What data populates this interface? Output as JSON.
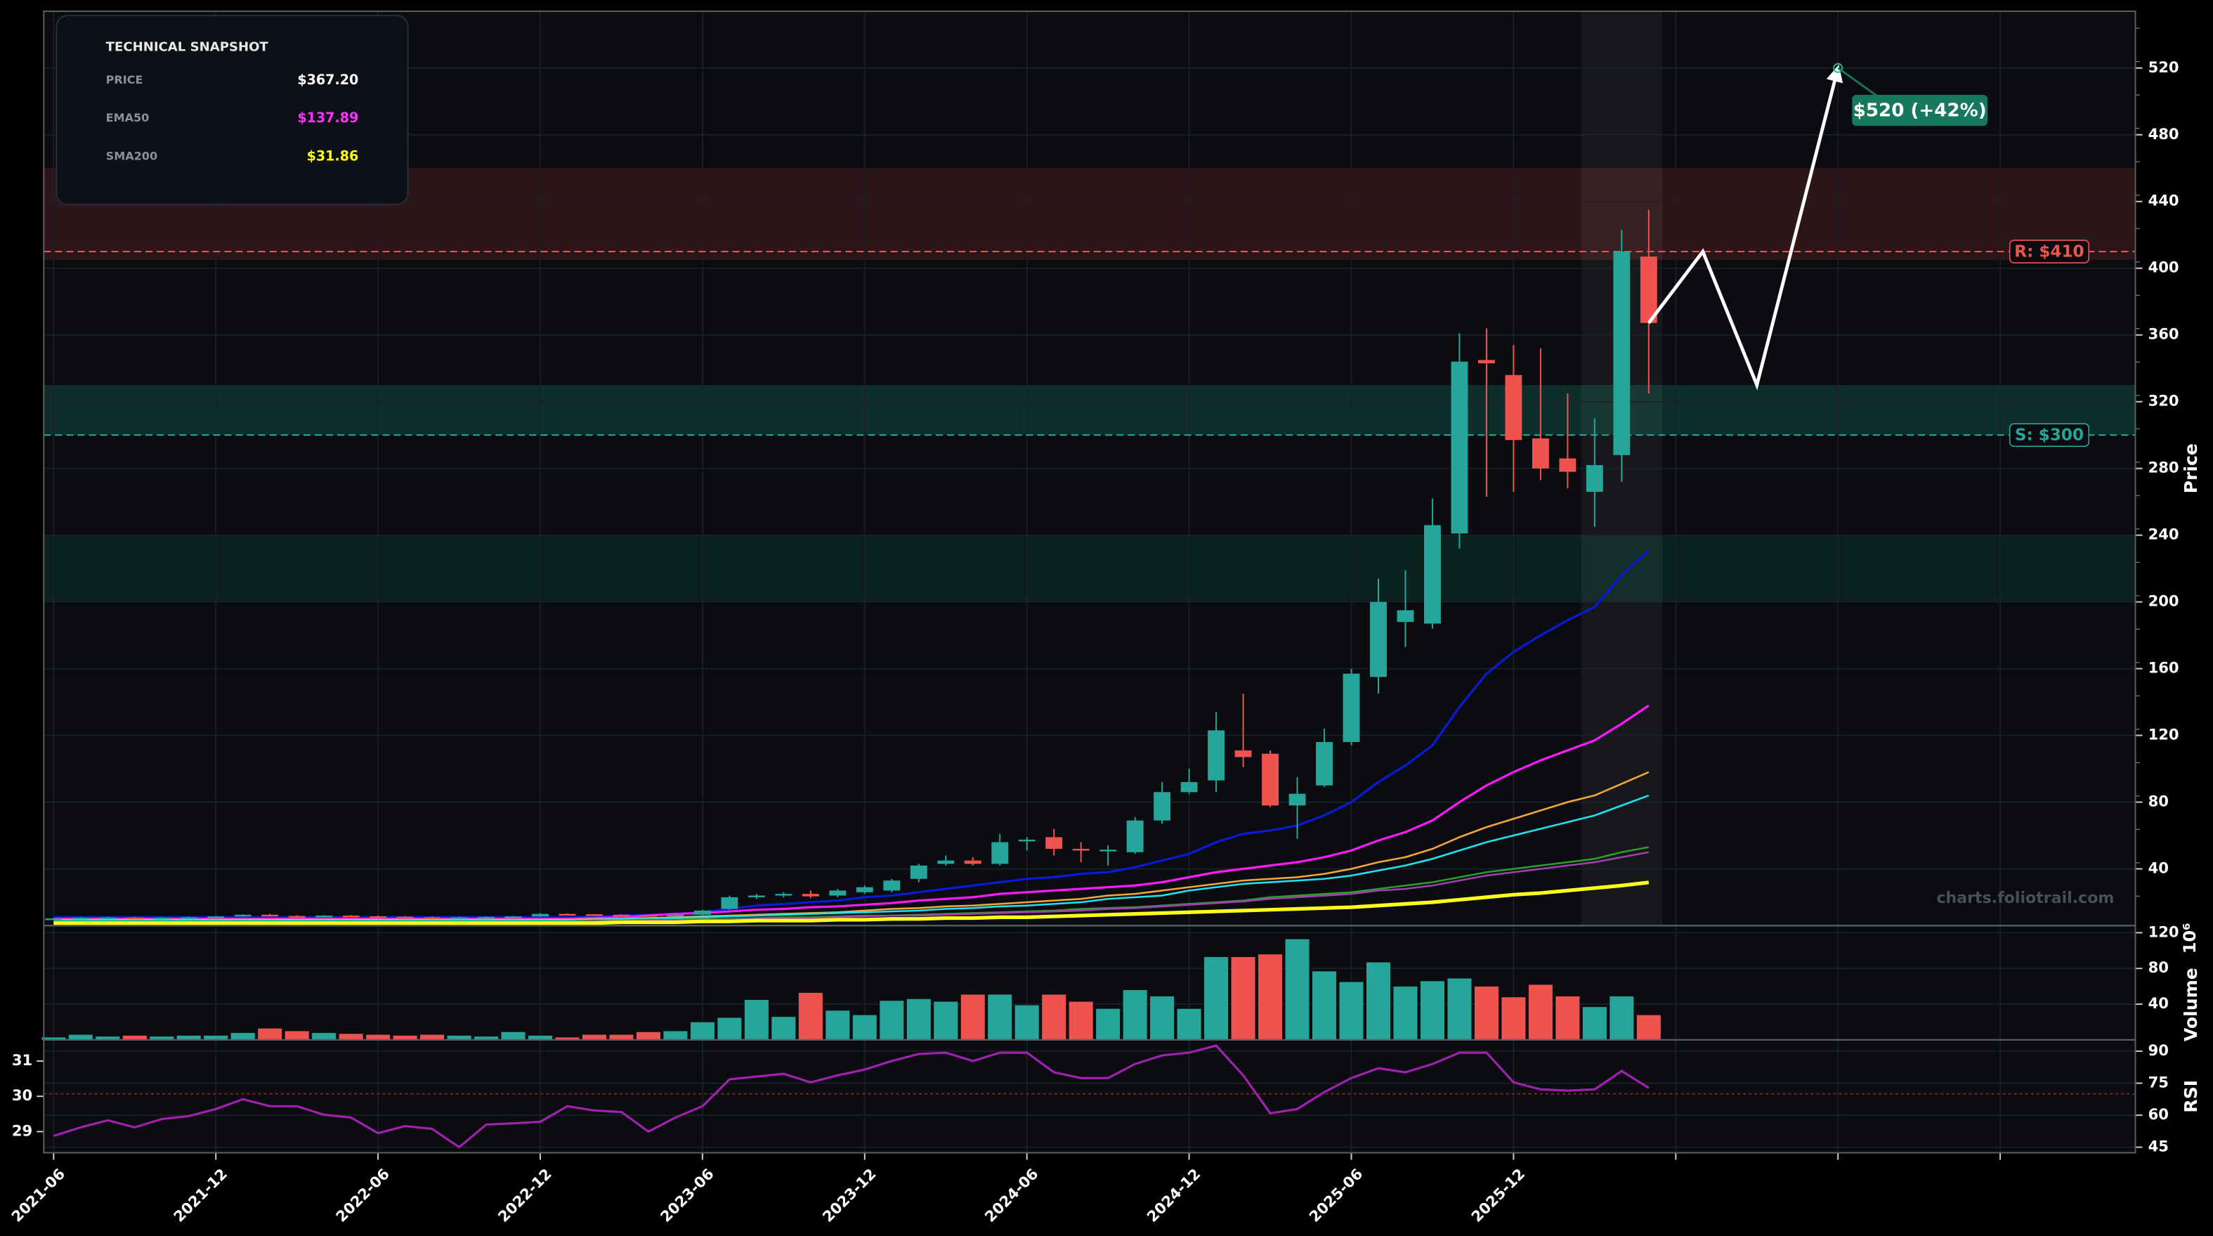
{
  "chart_data": [
    {
      "type": "candlestick",
      "x": [
        "2021-06",
        "2021-07",
        "2021-08",
        "2021-09",
        "2021-10",
        "2021-11",
        "2021-12",
        "2022-01",
        "2022-02",
        "2022-03",
        "2022-04",
        "2022-05",
        "2022-06",
        "2022-07",
        "2022-08",
        "2022-09",
        "2022-10",
        "2022-11",
        "2022-12",
        "2023-01",
        "2023-02",
        "2023-03",
        "2023-04",
        "2023-05",
        "2023-06",
        "2023-07",
        "2023-08",
        "2023-09",
        "2023-10",
        "2023-11",
        "2023-12",
        "2024-01",
        "2024-02",
        "2024-03",
        "2024-04",
        "2024-05",
        "2024-06",
        "2024-07",
        "2024-08",
        "2024-09",
        "2024-10",
        "2024-11",
        "2024-12",
        "2025-01",
        "2025-02",
        "2025-03",
        "2025-04",
        "2025-05",
        "2025-06",
        "2025-07",
        "2025-08",
        "2025-09",
        "2025-10",
        "2025-11",
        "2025-12",
        "2026-01",
        "2026-02",
        "2026-03",
        "2026-04",
        "2026-05"
      ],
      "open": [
        10,
        10.3,
        10.8,
        10.9,
        10.5,
        10.8,
        11,
        11.5,
        12.5,
        11.8,
        11.5,
        12,
        11.6,
        11.3,
        11,
        10.8,
        11,
        11.2,
        11.5,
        13,
        12.8,
        12.5,
        12.3,
        12,
        12.5,
        16,
        23,
        24,
        25,
        24,
        26,
        27,
        34,
        43,
        45,
        43,
        57,
        59,
        52,
        51,
        50,
        69,
        86,
        93,
        111,
        109,
        78,
        90,
        116,
        155,
        188,
        187,
        241,
        345,
        336,
        298,
        286,
        266,
        288,
        407
      ],
      "high": [
        10.6,
        11,
        11.2,
        11.2,
        11,
        11.3,
        11.8,
        12.8,
        13,
        12.2,
        12.3,
        12.3,
        12,
        11.8,
        11.5,
        11.3,
        11.5,
        11.8,
        13.5,
        13.3,
        13,
        12.8,
        12.6,
        13,
        15.5,
        24,
        25,
        26,
        27,
        28,
        30,
        34,
        43,
        48,
        47,
        61,
        59,
        64,
        56,
        54,
        71,
        92,
        100,
        134,
        145,
        111,
        95,
        124,
        160,
        214,
        219,
        262,
        361,
        364,
        354,
        352,
        325,
        310,
        423,
        435
      ],
      "low": [
        9.6,
        10,
        10.3,
        10.2,
        10.2,
        10.5,
        10.8,
        11.2,
        11.5,
        11,
        11,
        11.3,
        11,
        10.8,
        10.5,
        10.5,
        10.8,
        11,
        11.3,
        12.3,
        12,
        12,
        11.7,
        11.7,
        12.2,
        15.5,
        22,
        23,
        22.5,
        23,
        25,
        26,
        32,
        42,
        42,
        42,
        51,
        48,
        44,
        42,
        49,
        67,
        85,
        86,
        101,
        77,
        58,
        89,
        114,
        145,
        173,
        184,
        232,
        263,
        266,
        273,
        268,
        245,
        272,
        325
      ],
      "close": [
        10.3,
        10.8,
        10.9,
        10.5,
        10.8,
        11,
        11.5,
        12.5,
        11.8,
        11.5,
        12,
        11.6,
        11.3,
        11,
        10.8,
        11,
        11.2,
        11.5,
        13,
        12.8,
        12.5,
        12.3,
        12,
        12.5,
        15,
        23,
        24,
        25,
        23.5,
        27,
        29,
        33,
        42,
        45,
        43,
        56,
        57.5,
        52,
        51,
        51.5,
        69,
        86,
        92,
        123,
        107,
        78,
        85,
        116,
        157,
        200,
        195,
        246,
        344,
        343,
        297,
        280,
        278,
        282,
        410,
        367.2
      ],
      "up_color": "#26a69a",
      "down_color": "#ef5350",
      "ylabel": "Price",
      "ylim": [
        6,
        554
      ],
      "yticks": [
        40,
        80,
        120,
        160,
        200,
        240,
        280,
        320,
        360,
        400,
        440,
        480,
        520
      ],
      "xlim": [
        "2021-06",
        "2027-11"
      ],
      "xticks": [
        "2021-06",
        "2021-12",
        "2022-06",
        "2022-12",
        "2023-06",
        "2023-12",
        "2024-06",
        "2024-12",
        "2025-06",
        "2025-12"
      ],
      "xticks_unlabeled": [
        "2026-06",
        "2026-12",
        "2027-06"
      ],
      "grid": true,
      "series": [
        {
          "color": "#0a1ad6",
          "line_width": 1.6,
          "values": [
            11,
            11,
            11,
            11,
            11,
            11,
            11,
            11,
            11,
            11,
            11,
            11,
            11,
            11,
            11,
            11,
            11,
            11,
            11,
            11,
            11.5,
            12,
            12.5,
            13,
            14,
            16,
            18,
            19,
            20,
            21,
            23,
            24,
            26,
            28,
            30,
            32,
            34,
            35,
            37,
            38,
            41,
            45,
            49,
            56,
            61,
            63,
            66,
            72,
            80,
            92,
            102,
            114,
            137,
            157,
            170,
            180,
            189,
            197,
            216,
            231
          ]
        },
        {
          "color": "#ff1aff",
          "line_width": 1.6,
          "values": [
            10,
            10,
            10,
            10,
            10,
            10,
            10,
            10,
            10,
            10,
            10,
            10,
            10,
            10,
            10,
            10,
            10,
            10,
            10,
            10,
            10.5,
            11,
            12,
            13,
            13.5,
            14.5,
            15.5,
            16,
            17,
            17.5,
            18.5,
            19.5,
            21,
            22,
            23,
            25,
            26,
            27,
            28,
            29,
            30,
            32,
            35,
            38,
            40,
            42,
            44,
            47,
            51,
            57,
            62,
            69,
            80,
            90,
            98,
            105,
            111,
            117,
            127,
            137.89
          ]
        },
        {
          "color": "#f5a53a",
          "line_width": 1.3,
          "values": [
            9.5,
            9.5,
            9.5,
            9.5,
            9.5,
            9.5,
            9.5,
            9.5,
            9.5,
            9.5,
            9.5,
            9.5,
            9.5,
            9.5,
            9.5,
            9.5,
            9.5,
            9.5,
            9.5,
            9.5,
            10,
            10,
            10.5,
            11,
            11.5,
            12,
            12.5,
            13,
            13.5,
            14,
            15,
            16,
            16.5,
            17.5,
            18,
            19,
            20,
            21,
            22,
            24,
            25,
            27,
            29,
            31,
            33,
            34,
            35,
            37,
            40,
            44,
            47,
            52,
            59,
            65,
            70,
            75,
            80,
            84,
            91,
            98
          ]
        },
        {
          "color": "#1ee3f0",
          "line_width": 1.3,
          "values": [
            9,
            9,
            9,
            9,
            9,
            9,
            9,
            9,
            9,
            9,
            9,
            9,
            9,
            9,
            9,
            9,
            9,
            9,
            9,
            9,
            9.5,
            10,
            10,
            10.5,
            11,
            11.5,
            12,
            12.5,
            13,
            13.5,
            14,
            14.5,
            15,
            16,
            16.5,
            17.5,
            18,
            19,
            20,
            22,
            23,
            24,
            27,
            29,
            31,
            32,
            33,
            34,
            36,
            39,
            42,
            46,
            51,
            56,
            60,
            64,
            68,
            72,
            78,
            84
          ]
        },
        {
          "color": "#2a9d2a",
          "line_width": 1.3,
          "values": [
            8.5,
            8.5,
            8.5,
            8.5,
            8.5,
            8.5,
            8.5,
            8.5,
            8.5,
            8.5,
            8.5,
            8.5,
            8.5,
            8.5,
            8.5,
            8.5,
            8.5,
            8.5,
            8.5,
            8.5,
            9,
            9,
            9.5,
            9.5,
            10,
            10,
            10.5,
            11,
            11,
            11.5,
            12,
            12,
            12.5,
            13,
            13.5,
            14,
            14.5,
            15,
            16,
            16.5,
            17,
            18,
            19,
            20,
            21,
            23,
            24,
            25,
            26,
            28,
            30,
            32,
            35,
            38,
            40,
            42,
            44,
            46,
            50,
            53
          ]
        },
        {
          "color": "#a040b0",
          "line_width": 1.3,
          "values": [
            8,
            8,
            8,
            8,
            8,
            8,
            8,
            8,
            8,
            8,
            8,
            8,
            8,
            8,
            8,
            8,
            8,
            8,
            8,
            8,
            8.5,
            8.5,
            9,
            9,
            9.5,
            9.5,
            10,
            10.5,
            10.5,
            11,
            11.5,
            12,
            12,
            12.5,
            13,
            13.5,
            14,
            14.5,
            15,
            16,
            16.5,
            17.5,
            18.5,
            19.5,
            20.5,
            22,
            23,
            24,
            25,
            27,
            28,
            30,
            33,
            36,
            38,
            40,
            42,
            44,
            47,
            50
          ]
        },
        {
          "color": "#ffff1a",
          "line_width": 2.6,
          "values": [
            7.5,
            7.5,
            7.5,
            7.5,
            7.5,
            7.5,
            7.5,
            7.5,
            7.5,
            7.5,
            7.5,
            7.5,
            7.5,
            7.5,
            7.5,
            7.5,
            7.5,
            7.5,
            7.5,
            7.5,
            7.5,
            8,
            8,
            8,
            8.5,
            8.5,
            9,
            9,
            9,
            9.5,
            9.5,
            10,
            10,
            10.5,
            10.5,
            11,
            11,
            11.5,
            12,
            12.5,
            13,
            13.5,
            14,
            14.5,
            15,
            15.5,
            16,
            16.5,
            17,
            18,
            19,
            20,
            21.5,
            23,
            24.5,
            25.5,
            27,
            28.5,
            30,
            31.86
          ]
        }
      ],
      "levels": [
        {
          "value": 410,
          "label": "R: $410",
          "color": "#ef5350"
        },
        {
          "value": 300,
          "label": "S: $300",
          "color": "#26a69a"
        }
      ],
      "zones": [
        {
          "from": 405,
          "to": 460,
          "color": "#3a1a1e"
        },
        {
          "from": 300,
          "to": 330,
          "color": "#0f3a33"
        },
        {
          "from": 200,
          "to": 240,
          "color": "#0a2a25"
        }
      ],
      "highlight": [
        "2026-03",
        "2026-05"
      ],
      "projection": {
        "x": [
          "2026-05",
          "2026-07",
          "2026-09",
          "2026-12"
        ],
        "values": [
          367.2,
          410,
          330,
          520
        ],
        "color": "#ffffff"
      },
      "annotation": {
        "label": "$520 (+42%)",
        "color": "#17785c"
      },
      "watermark": "charts.foliotrail.com"
    },
    {
      "type": "bar",
      "ylabel": "Volume",
      "offset_label": "10⁶",
      "values": [
        3,
        6,
        4,
        5,
        4,
        5,
        5,
        8,
        13,
        10,
        8,
        7,
        6,
        5,
        6,
        5,
        4,
        9,
        5,
        3,
        6,
        6,
        9,
        10,
        20,
        25,
        45,
        26,
        53,
        33,
        28,
        44,
        46,
        43,
        51,
        51,
        39,
        51,
        43,
        35,
        56,
        49,
        35,
        93,
        93,
        96,
        113,
        77,
        65,
        87,
        60,
        66,
        69,
        60,
        48,
        62,
        49,
        37,
        49,
        28
      ],
      "ylim": [
        0,
        128
      ],
      "yticks": [
        40,
        80,
        120
      ]
    },
    {
      "type": "line",
      "ylabel": "RSI",
      "color": "#a020b0",
      "values": [
        50.3,
        54.3,
        57.6,
        54.3,
        58.2,
        59.6,
        62.9,
        67.5,
        64.2,
        64.2,
        60.2,
        58.9,
        51.6,
        54.9,
        53.6,
        45,
        55.6,
        56.2,
        56.9,
        64.2,
        62.2,
        61.5,
        52.3,
        58.9,
        64.2,
        76.8,
        78.1,
        79.4,
        75.4,
        78.7,
        81.4,
        85.4,
        88.7,
        89.3,
        85.4,
        89.3,
        89.3,
        80.1,
        77.4,
        77.4,
        84,
        88,
        89.3,
        92.6,
        78.7,
        60.9,
        62.9,
        70.8,
        77.4,
        82,
        80.1,
        84,
        89.3,
        89.3,
        75.4,
        72.1,
        71.5,
        72.1,
        80.7,
        72.8
      ],
      "ylim": [
        42.4,
        95.3
      ],
      "yticks": [
        45,
        60,
        75,
        90
      ],
      "y2lim": [
        28.4,
        31.6
      ],
      "y2ticks": [
        29,
        30,
        31
      ],
      "levels": [
        {
          "value": 70,
          "color": "#8a2a2a"
        }
      ]
    }
  ],
  "snapshot": {
    "title": "TECHNICAL SNAPSHOT",
    "rows": [
      {
        "label": "PRICE",
        "value": "$367.20",
        "color": "#ffffff"
      },
      {
        "label": "EMA50",
        "value": "$137.89",
        "color": "#ff33ff"
      },
      {
        "label": "SMA200",
        "value": "$31.86",
        "color": "#ffff1a"
      }
    ]
  }
}
